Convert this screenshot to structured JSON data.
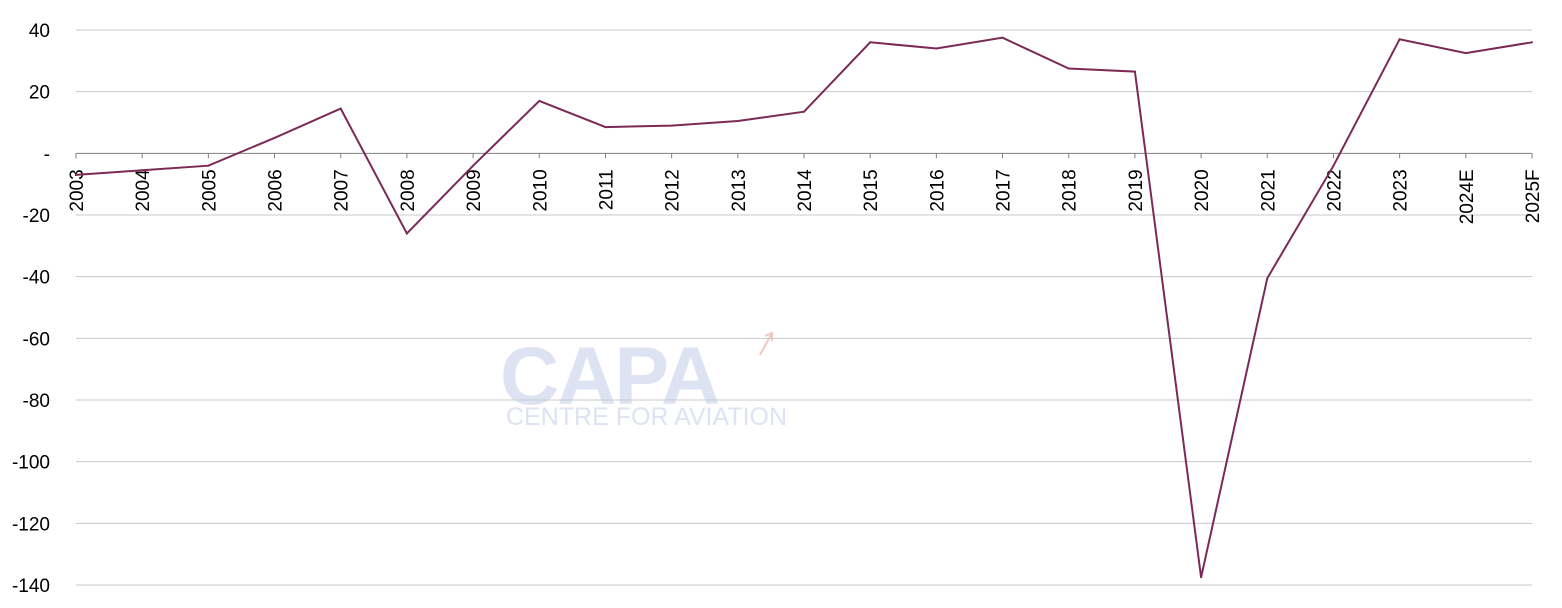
{
  "chart_data": {
    "type": "line",
    "title": "",
    "xlabel": "",
    "ylabel": "",
    "categories": [
      "2003",
      "2004",
      "2005",
      "2006",
      "2007",
      "2008",
      "2009",
      "2010",
      "2011",
      "2012",
      "2013",
      "2014",
      "2015",
      "2016",
      "2017",
      "2018",
      "2019",
      "2020",
      "2021",
      "2022",
      "2023",
      "2024E",
      "2025F"
    ],
    "series": [
      {
        "color": "#7b2a55",
        "values": [
          -7,
          -5.5,
          -4,
          5,
          14.5,
          -26,
          -4,
          17,
          8.5,
          9,
          10.5,
          13.5,
          36,
          34,
          37.5,
          27.5,
          26.5,
          -137.5,
          -40.5,
          -4,
          37,
          32.5,
          36
        ]
      }
    ],
    "ylim": [
      -140,
      40
    ],
    "yticks": [
      {
        "value": 40,
        "label": "40"
      },
      {
        "value": 20,
        "label": "20"
      },
      {
        "value": 0,
        "label": "-"
      },
      {
        "value": -20,
        "label": "-20"
      },
      {
        "value": -40,
        "label": "-40"
      },
      {
        "value": -60,
        "label": "-60"
      },
      {
        "value": -80,
        "label": "-80"
      },
      {
        "value": -100,
        "label": "-100"
      },
      {
        "value": -120,
        "label": "-120"
      },
      {
        "value": -140,
        "label": "-140"
      }
    ],
    "grid": true,
    "legend": "none"
  },
  "watermark": {
    "logo": "CAPA",
    "tagline": "CENTRE FOR AVIATION",
    "color": "#dde3f2"
  }
}
